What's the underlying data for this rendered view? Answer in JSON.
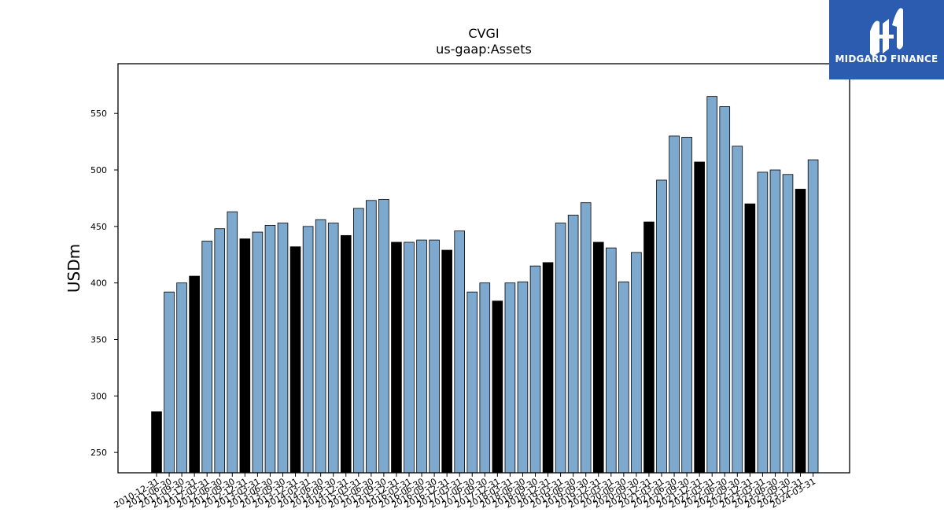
{
  "chart_data": {
    "type": "bar",
    "title": "CVGI",
    "subtitle": "us-gaap:Assets",
    "xlabel": "",
    "ylabel": "USDm",
    "ylim": [
      232,
      594
    ],
    "yticks": [
      250,
      300,
      350,
      400,
      450,
      500,
      550
    ],
    "grid": false,
    "colors": {
      "quarterly": "#7ea9cf",
      "annual": "#000000",
      "edge": "#000000"
    },
    "categories": [
      "2010-12-31",
      "2011-06-30",
      "2011-09-30",
      "2011-12-31",
      "2012-03-31",
      "2012-06-30",
      "2012-09-30",
      "2012-12-31",
      "2013-03-31",
      "2013-06-30",
      "2013-09-30",
      "2013-12-31",
      "2014-03-31",
      "2014-06-30",
      "2014-09-30",
      "2014-12-31",
      "2015-03-31",
      "2015-06-30",
      "2015-09-30",
      "2015-12-31",
      "2016-03-31",
      "2016-06-30",
      "2016-09-30",
      "2016-12-31",
      "2017-03-31",
      "2017-06-30",
      "2017-09-30",
      "2017-12-31",
      "2018-03-31",
      "2018-06-30",
      "2018-09-30",
      "2018-12-31",
      "2019-03-31",
      "2019-06-30",
      "2019-09-30",
      "2019-12-31",
      "2020-03-31",
      "2020-06-30",
      "2020-09-30",
      "2020-12-31",
      "2021-03-31",
      "2021-06-30",
      "2021-09-30",
      "2021-12-31",
      "2022-03-31",
      "2022-06-30",
      "2022-09-30",
      "2022-12-31",
      "2023-03-31",
      "2023-06-30",
      "2023-09-30",
      "2023-12-31",
      "2024-03-31"
    ],
    "values": [
      286,
      392,
      400,
      406,
      437,
      448,
      463,
      439,
      445,
      451,
      453,
      432,
      450,
      456,
      453,
      442,
      466,
      473,
      474,
      436,
      436,
      438,
      438,
      429,
      446,
      392,
      400,
      384,
      400,
      401,
      415,
      418,
      453,
      460,
      471,
      436,
      431,
      401,
      427,
      454,
      491,
      530,
      529,
      507,
      565,
      556,
      521,
      470,
      498,
      500,
      496,
      483,
      509
    ],
    "annual": [
      true,
      false,
      false,
      true,
      false,
      false,
      false,
      true,
      false,
      false,
      false,
      true,
      false,
      false,
      false,
      true,
      false,
      false,
      false,
      true,
      false,
      false,
      false,
      true,
      false,
      false,
      false,
      true,
      false,
      false,
      false,
      true,
      false,
      false,
      false,
      true,
      false,
      false,
      false,
      true,
      false,
      false,
      false,
      true,
      false,
      false,
      false,
      true,
      false,
      false,
      false,
      true,
      false
    ]
  },
  "logo": {
    "text": "MIDGARD FINANCE"
  }
}
